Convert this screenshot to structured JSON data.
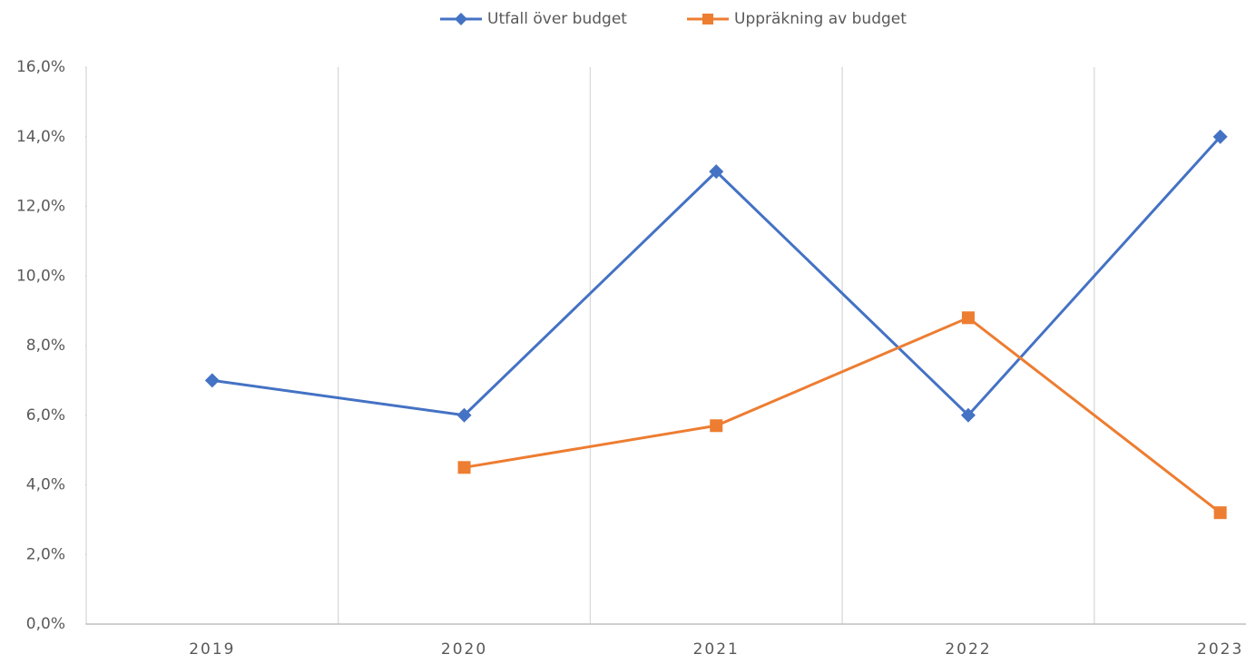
{
  "chart_data": {
    "type": "line",
    "categories": [
      "2019",
      "2020",
      "2021",
      "2022",
      "2023"
    ],
    "series": [
      {
        "name": "Utfall över budget",
        "color": "#4472c4",
        "marker": "diamond",
        "values": [
          7.0,
          6.0,
          13.0,
          6.0,
          14.0
        ]
      },
      {
        "name": "Uppräkning av budget",
        "color": "#ed7d31",
        "marker": "square",
        "values": [
          null,
          4.5,
          5.7,
          8.8,
          3.2
        ]
      }
    ],
    "ylim": [
      0,
      16
    ],
    "yticks": [
      {
        "value": 0,
        "label": "0,0%"
      },
      {
        "value": 2,
        "label": "2,0%"
      },
      {
        "value": 4,
        "label": "4,0%"
      },
      {
        "value": 6,
        "label": "6,0%"
      },
      {
        "value": 8,
        "label": "8,0%"
      },
      {
        "value": 10,
        "label": "10,0%"
      },
      {
        "value": 12,
        "label": "12,0%"
      },
      {
        "value": 14,
        "label": "14,0%"
      },
      {
        "value": 16,
        "label": "16,0%"
      }
    ],
    "grid": true,
    "legend": "top"
  }
}
